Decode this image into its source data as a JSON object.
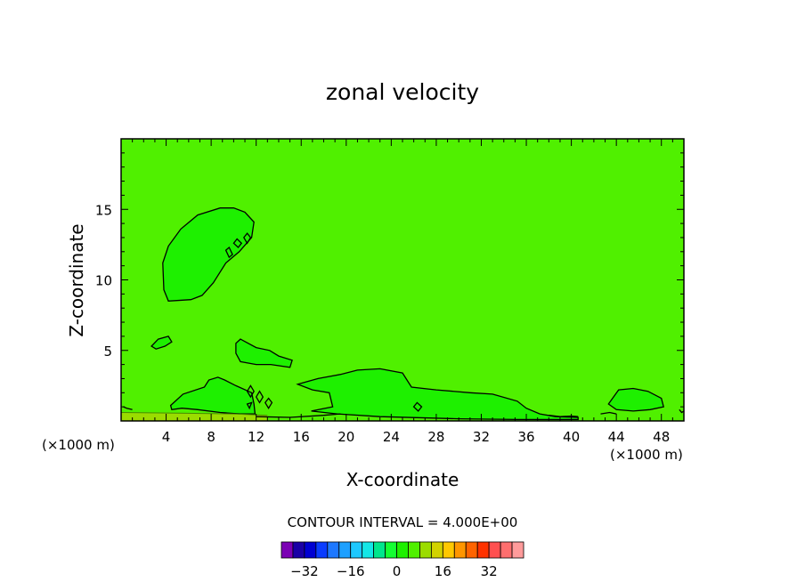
{
  "chart_data": {
    "type": "contour",
    "title": "zonal velocity",
    "xlabel": "X-coordinate",
    "ylabel": "Z-coordinate",
    "x_units": "(×1000 m)",
    "x_units_right": "(×1000 m)",
    "xlim": [
      0,
      50
    ],
    "ylim": [
      0,
      20
    ],
    "x_ticks": [
      4,
      8,
      12,
      16,
      20,
      24,
      28,
      32,
      36,
      40,
      44,
      48
    ],
    "y_ticks": [
      5,
      10,
      15
    ],
    "background_value": 4,
    "regions": [
      {
        "value": 0,
        "points": [
          [
            3.7,
            11.2
          ],
          [
            4.2,
            12.4
          ],
          [
            5.3,
            13.6
          ],
          [
            6.8,
            14.6
          ],
          [
            8.8,
            15.1
          ],
          [
            10.0,
            15.1
          ],
          [
            11.0,
            14.8
          ],
          [
            11.8,
            14.1
          ],
          [
            11.6,
            13.0
          ],
          [
            10.5,
            12.0
          ],
          [
            9.3,
            11.2
          ],
          [
            8.2,
            9.8
          ],
          [
            7.2,
            8.9
          ],
          [
            6.2,
            8.6
          ],
          [
            4.2,
            8.5
          ],
          [
            3.8,
            9.3
          ]
        ]
      },
      {
        "value": 0,
        "points": [
          [
            2.7,
            5.3
          ],
          [
            3.3,
            5.8
          ],
          [
            4.2,
            6.0
          ],
          [
            4.5,
            5.6
          ],
          [
            3.9,
            5.3
          ],
          [
            3.1,
            5.1
          ]
        ]
      },
      {
        "value": 0,
        "points": [
          [
            10.2,
            5.5
          ],
          [
            10.6,
            5.8
          ],
          [
            12.0,
            5.2
          ],
          [
            13.2,
            5.0
          ],
          [
            14.0,
            4.6
          ],
          [
            15.2,
            4.3
          ],
          [
            15.0,
            3.8
          ],
          [
            13.3,
            4.0
          ],
          [
            12.0,
            4.0
          ],
          [
            10.6,
            4.2
          ],
          [
            10.2,
            4.8
          ]
        ]
      },
      {
        "value": 0,
        "points": [
          [
            4.4,
            1.1
          ],
          [
            5.5,
            1.9
          ],
          [
            7.4,
            2.4
          ],
          [
            7.8,
            2.9
          ],
          [
            8.6,
            3.1
          ],
          [
            9.2,
            2.9
          ],
          [
            10.2,
            2.5
          ],
          [
            11.6,
            2.0
          ],
          [
            11.8,
            1.2
          ],
          [
            11.9,
            0.5
          ],
          [
            10.6,
            0.5
          ],
          [
            8.8,
            0.6
          ],
          [
            6.8,
            0.8
          ],
          [
            5.4,
            0.9
          ],
          [
            4.5,
            0.8
          ]
        ]
      },
      {
        "value": 0,
        "points": [
          [
            15.7,
            2.6
          ],
          [
            17.5,
            3.0
          ],
          [
            19.5,
            3.3
          ],
          [
            21.0,
            3.6
          ],
          [
            23.0,
            3.7
          ],
          [
            25.0,
            3.4
          ],
          [
            25.8,
            2.4
          ],
          [
            28.0,
            2.2
          ],
          [
            31.0,
            2.0
          ],
          [
            33.0,
            1.9
          ],
          [
            35.2,
            1.4
          ],
          [
            36.0,
            0.9
          ],
          [
            37.2,
            0.5
          ],
          [
            38.6,
            0.3
          ],
          [
            40.6,
            0.25
          ],
          [
            40.6,
            0.1
          ],
          [
            35.2,
            0.1
          ],
          [
            30.0,
            0.15
          ],
          [
            23.0,
            0.3
          ],
          [
            19.2,
            0.5
          ],
          [
            16.9,
            0.7
          ],
          [
            18.8,
            1.0
          ],
          [
            18.5,
            2.0
          ],
          [
            17.0,
            2.2
          ]
        ]
      },
      {
        "value": 0,
        "points": [
          [
            43.3,
            1.2
          ],
          [
            44.2,
            2.2
          ],
          [
            45.5,
            2.3
          ],
          [
            46.8,
            2.1
          ],
          [
            48.0,
            1.6
          ],
          [
            48.2,
            1.0
          ],
          [
            47.0,
            0.8
          ],
          [
            45.5,
            0.7
          ],
          [
            44.0,
            0.8
          ]
        ]
      },
      {
        "value": 8,
        "points": [
          [
            0.0,
            0.6
          ],
          [
            5.0,
            0.55
          ],
          [
            10.0,
            0.5
          ],
          [
            13.0,
            0.4
          ],
          [
            13.0,
            0.0
          ],
          [
            0.0,
            0.0
          ]
        ]
      }
    ],
    "contours": [
      {
        "value": 0,
        "closed": false,
        "points": [
          [
            0.2,
            1.0
          ],
          [
            0.5,
            0.9
          ],
          [
            1.0,
            0.8
          ]
        ]
      },
      {
        "value": 0,
        "closed": true,
        "points": [
          [
            9.3,
            12.1
          ],
          [
            9.6,
            11.6
          ],
          [
            9.9,
            11.8
          ],
          [
            9.6,
            12.3
          ]
        ]
      },
      {
        "value": 0,
        "closed": true,
        "points": [
          [
            10.0,
            12.6
          ],
          [
            10.4,
            12.3
          ],
          [
            10.7,
            12.6
          ],
          [
            10.3,
            12.9
          ]
        ]
      },
      {
        "value": 0,
        "closed": true,
        "points": [
          [
            10.9,
            13.0
          ],
          [
            11.2,
            12.6
          ],
          [
            11.5,
            13.0
          ],
          [
            11.2,
            13.3
          ]
        ]
      },
      {
        "value": 0,
        "closed": true,
        "points": [
          [
            11.2,
            2.1
          ],
          [
            11.5,
            1.7
          ],
          [
            11.8,
            2.1
          ],
          [
            11.5,
            2.5
          ]
        ]
      },
      {
        "value": 0,
        "closed": true,
        "points": [
          [
            12.0,
            1.7
          ],
          [
            12.3,
            1.3
          ],
          [
            12.6,
            1.7
          ],
          [
            12.3,
            2.1
          ]
        ]
      },
      {
        "value": 0,
        "closed": true,
        "points": [
          [
            12.8,
            1.3
          ],
          [
            13.1,
            0.9
          ],
          [
            13.4,
            1.3
          ],
          [
            13.1,
            1.6
          ]
        ]
      },
      {
        "value": 0,
        "closed": true,
        "points": [
          [
            26.0,
            1.0
          ],
          [
            26.4,
            0.7
          ],
          [
            26.7,
            1.0
          ],
          [
            26.3,
            1.3
          ]
        ]
      },
      {
        "value": 0,
        "closed": true,
        "points": [
          [
            11.2,
            1.2
          ],
          [
            11.4,
            0.9
          ],
          [
            11.6,
            1.3
          ]
        ]
      },
      {
        "value": 0,
        "closed": false,
        "points": [
          [
            12.0,
            0.3
          ],
          [
            15.0,
            0.25
          ],
          [
            18.0,
            0.4
          ],
          [
            19.5,
            0.5
          ]
        ]
      },
      {
        "value": 0,
        "closed": false,
        "points": [
          [
            38.0,
            0.4
          ],
          [
            39.0,
            0.3
          ],
          [
            40.0,
            0.35
          ],
          [
            40.6,
            0.3
          ]
        ]
      },
      {
        "value": 0,
        "closed": false,
        "points": [
          [
            42.6,
            0.5
          ],
          [
            43.4,
            0.6
          ],
          [
            44.0,
            0.5
          ]
        ]
      },
      {
        "value": 0,
        "closed": false,
        "points": [
          [
            49.6,
            0.8
          ],
          [
            49.8,
            0.6
          ],
          [
            50.0,
            0.7
          ]
        ]
      },
      {
        "value": 8,
        "closed": false,
        "points": [
          [
            0.0,
            0.6
          ],
          [
            5.0,
            0.55
          ],
          [
            10.0,
            0.5
          ],
          [
            13.0,
            0.4
          ]
        ]
      }
    ],
    "contour_interval_label": "CONTOUR INTERVAL =",
    "contour_interval_value": "4.000E+00",
    "colorbar": {
      "colors": [
        "#7b00b4",
        "#1a00a6",
        "#0000d2",
        "#0a3cff",
        "#1e78ff",
        "#1ea0ff",
        "#1ec8ff",
        "#14e6e6",
        "#00e68c",
        "#14ff32",
        "#1ef000",
        "#50f000",
        "#9bdc00",
        "#d2d200",
        "#ffc800",
        "#ff9600",
        "#ff6400",
        "#ff3200",
        "#ff5050",
        "#ff6e6e",
        "#ff9b9b"
      ],
      "tick_labels": [
        "−32",
        "−16",
        "0",
        "16",
        "32"
      ],
      "tick_values": [
        -32,
        -16,
        0,
        16,
        32
      ],
      "min": -40,
      "max": 44
    },
    "grid": false,
    "legend": "bottom"
  }
}
